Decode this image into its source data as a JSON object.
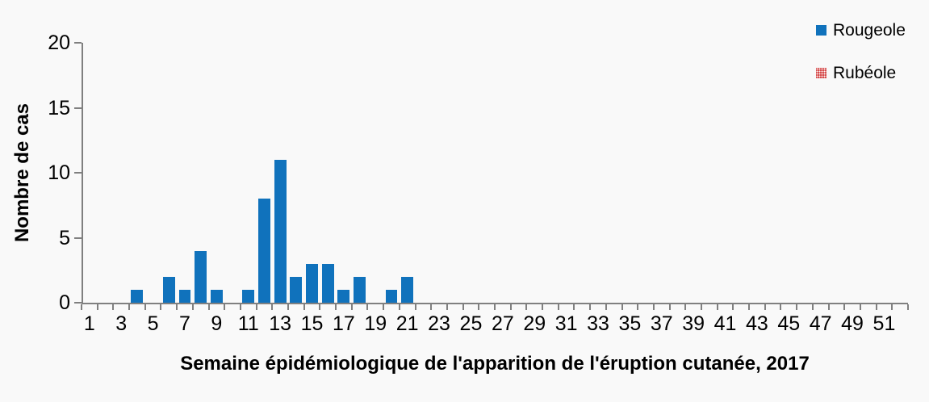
{
  "colors": {
    "rougeole_blue": "#1072BC",
    "rubeole_red": "#CC2222",
    "axis_gray": "#808080",
    "background": "#F9F9F9",
    "text": "#000000"
  },
  "legend": {
    "position": "top-right",
    "items": [
      {
        "label": "Rougeole",
        "color": "#1072BC",
        "pattern": "solid"
      },
      {
        "label": "Rubéole",
        "color": "#CC2222",
        "pattern": "dotted"
      }
    ]
  },
  "chart_data": {
    "type": "bar",
    "title": "",
    "xlabel": "Semaine épidémiologique de l'apparition de l'éruption cutanée, 2017",
    "ylabel": "Nombre de cas",
    "categories": [
      1,
      2,
      3,
      4,
      5,
      6,
      7,
      8,
      9,
      10,
      11,
      12,
      13,
      14,
      15,
      16,
      17,
      18,
      19,
      20,
      21,
      22,
      23,
      24,
      25,
      26,
      27,
      28,
      29,
      30,
      31,
      32,
      33,
      34,
      35,
      36,
      37,
      38,
      39,
      40,
      41,
      42,
      43,
      44,
      45,
      46,
      47,
      48,
      49,
      50,
      51,
      52
    ],
    "x_tick_labels": [
      1,
      3,
      5,
      7,
      9,
      11,
      13,
      15,
      17,
      19,
      21,
      23,
      25,
      27,
      29,
      31,
      33,
      35,
      37,
      39,
      41,
      43,
      45,
      47,
      49,
      51
    ],
    "ylim": [
      0,
      20
    ],
    "yticks": [
      0,
      5,
      10,
      15,
      20
    ],
    "grid": false,
    "legend_position": "top-right",
    "series": [
      {
        "name": "Rougeole",
        "color": "#1072BC",
        "values": [
          0,
          0,
          0,
          1,
          0,
          2,
          1,
          4,
          1,
          0,
          1,
          8,
          11,
          2,
          3,
          3,
          1,
          2,
          0,
          1,
          2,
          0,
          0,
          0,
          0,
          0,
          0,
          0,
          0,
          0,
          0,
          0,
          0,
          0,
          0,
          0,
          0,
          0,
          0,
          0,
          0,
          0,
          0,
          0,
          0,
          0,
          0,
          0,
          0,
          0,
          0,
          0
        ]
      },
      {
        "name": "Rubéole",
        "color": "#CC2222",
        "values": [
          0,
          0,
          0,
          0,
          0,
          0,
          0,
          0,
          0,
          0,
          0,
          0,
          0,
          0,
          0,
          0,
          0,
          0,
          0,
          0,
          0,
          0,
          0,
          0,
          0,
          0,
          0,
          0,
          0,
          0,
          0,
          0,
          0,
          0,
          0,
          0,
          0,
          0,
          0,
          0,
          0,
          0,
          0,
          0,
          0,
          0,
          0,
          0,
          0,
          0,
          0,
          0
        ]
      }
    ]
  }
}
